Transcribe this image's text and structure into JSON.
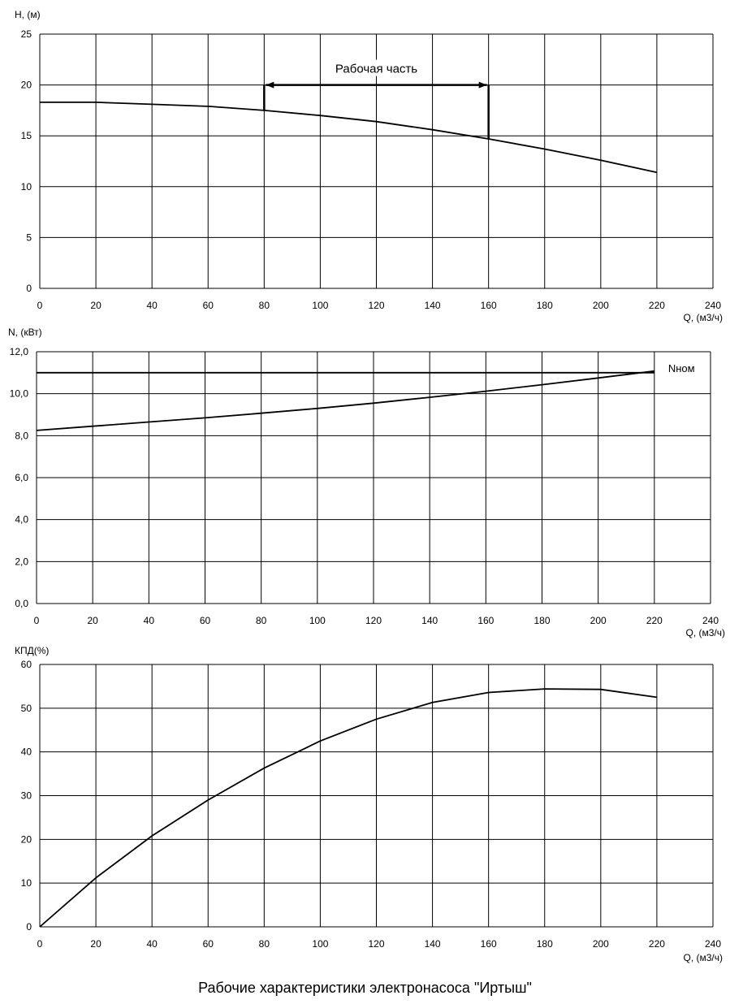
{
  "caption": "Рабочие характеристики электронасоса \"Иртыш\"",
  "chart_data": [
    {
      "type": "line",
      "ylabel": "H, (м)",
      "xlabel": "Q, (м3/ч)",
      "xlim": [
        0,
        240
      ],
      "ylim": [
        0,
        25
      ],
      "x_ticks": [
        "0",
        "20",
        "40",
        "60",
        "80",
        "100",
        "120",
        "140",
        "160",
        "180",
        "200",
        "220",
        "240"
      ],
      "y_ticks": [
        "0",
        "5",
        "10",
        "15",
        "20",
        "25"
      ],
      "grid": true,
      "series": [
        {
          "x": [
            0,
            20,
            40,
            60,
            80,
            100,
            120,
            140,
            160,
            180,
            200,
            220
          ],
          "y": [
            18.3,
            18.3,
            18.1,
            17.9,
            17.5,
            17.0,
            16.4,
            15.6,
            14.7,
            13.7,
            12.6,
            11.4
          ]
        }
      ],
      "annotations": [
        {
          "text": "Рабочая часть",
          "x_range": [
            80,
            160
          ],
          "y": 20
        }
      ]
    },
    {
      "type": "line",
      "ylabel": "N, (кВт)",
      "xlabel": "Q, (м3/ч)",
      "xlim": [
        0,
        240
      ],
      "ylim": [
        0,
        12
      ],
      "x_ticks": [
        "0",
        "20",
        "40",
        "60",
        "80",
        "100",
        "120",
        "140",
        "160",
        "180",
        "200",
        "220",
        "240"
      ],
      "y_ticks": [
        "0,0",
        "2,0",
        "4,0",
        "6,0",
        "8,0",
        "10,0",
        "12,0"
      ],
      "grid": true,
      "series": [
        {
          "name": "Nном",
          "x": [
            0,
            220
          ],
          "y": [
            11.0,
            11.0
          ]
        },
        {
          "x": [
            0,
            20,
            40,
            60,
            80,
            100,
            120,
            140,
            160,
            180,
            200,
            220
          ],
          "y": [
            8.25,
            8.45,
            8.65,
            8.85,
            9.07,
            9.3,
            9.55,
            9.83,
            10.12,
            10.43,
            10.75,
            11.08
          ]
        }
      ]
    },
    {
      "type": "line",
      "ylabel": "КПД(%)",
      "xlabel": "Q, (м3/ч)",
      "xlim": [
        0,
        240
      ],
      "ylim": [
        0,
        60
      ],
      "x_ticks": [
        "0",
        "20",
        "40",
        "60",
        "80",
        "100",
        "120",
        "140",
        "160",
        "180",
        "200",
        "220",
        "240"
      ],
      "y_ticks": [
        "0",
        "10",
        "20",
        "30",
        "40",
        "50",
        "60"
      ],
      "grid": true,
      "series": [
        {
          "x": [
            0,
            20,
            40,
            60,
            80,
            100,
            120,
            140,
            160,
            180,
            200,
            220
          ],
          "y": [
            0,
            11.2,
            20.8,
            29.0,
            36.3,
            42.5,
            47.5,
            51.3,
            53.6,
            54.4,
            54.3,
            52.5
          ]
        }
      ]
    }
  ]
}
